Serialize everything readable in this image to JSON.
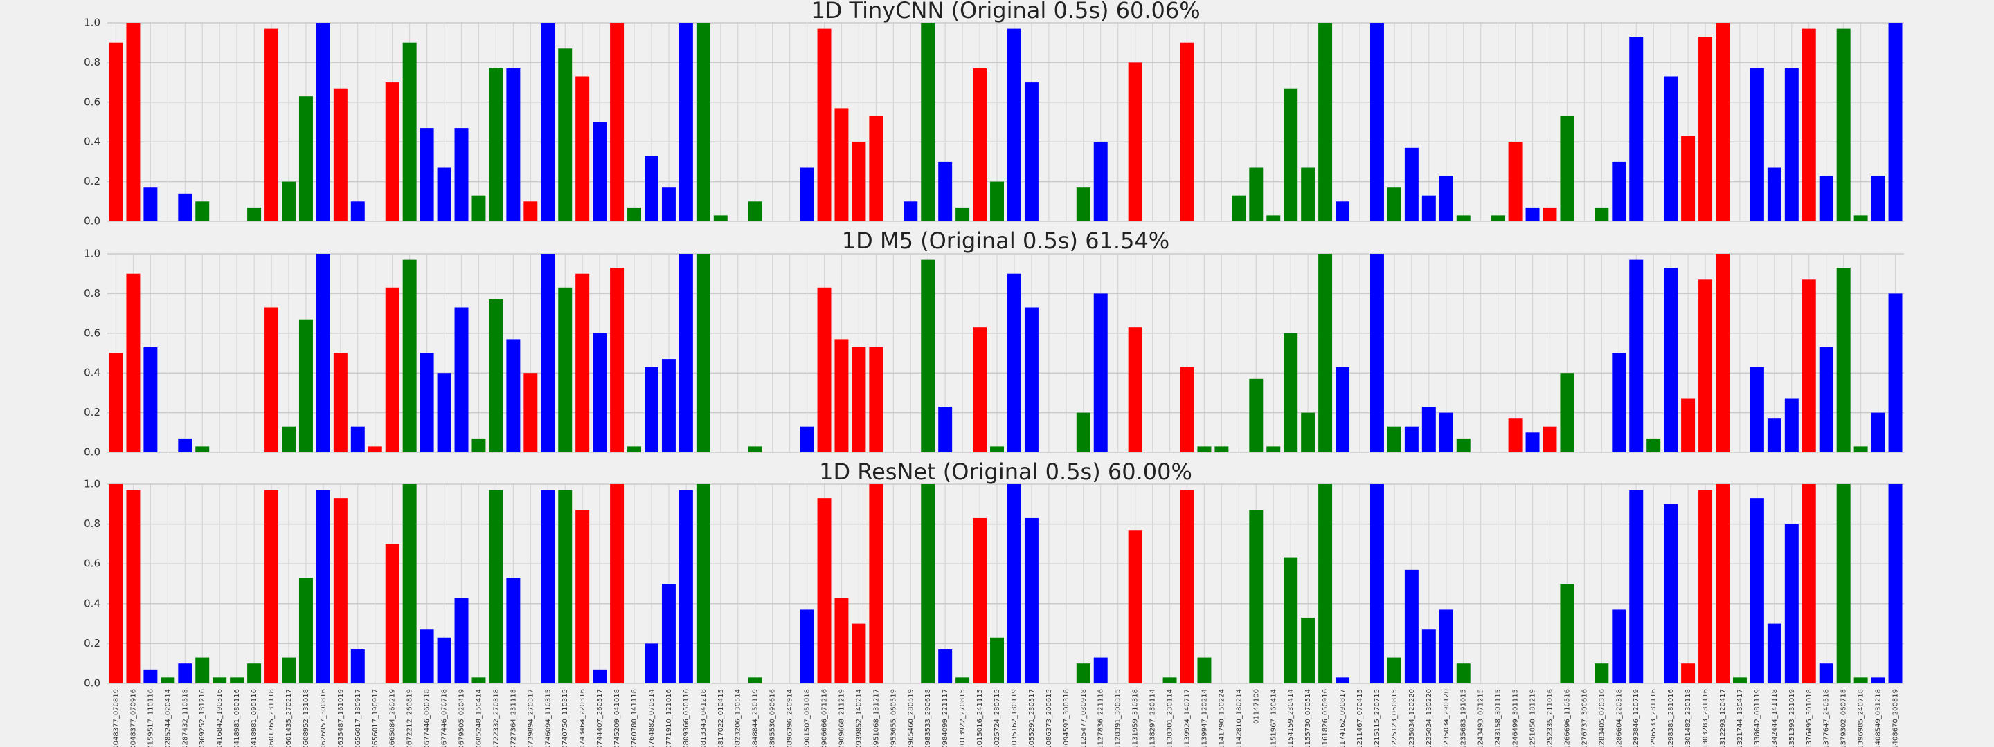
{
  "chart_data": [
    {
      "type": "bar",
      "title": "1D TinyCNN (Original 0.5s) 60.06%",
      "ylim": [
        0,
        1
      ],
      "yticks": [
        {
          "value": 0,
          "label": "0.0"
        },
        0.2,
        0.4,
        0.6,
        0.8,
        {
          "value": 1,
          "label": "1.0"
        }
      ],
      "grid": true,
      "colors": [
        "red",
        "red",
        "blue",
        "green",
        "blue",
        "green",
        "green",
        "green",
        "green",
        "red",
        "green",
        "green",
        "blue",
        "red",
        "blue",
        "red",
        "red",
        "green",
        "blue",
        "blue",
        "blue",
        "green",
        "green",
        "blue",
        "red",
        "blue",
        "green",
        "red",
        "blue",
        "red",
        "green",
        "blue",
        "blue",
        "blue",
        "green",
        "green",
        "green",
        "green",
        "green",
        "green",
        "blue",
        "red",
        "red",
        "red",
        "red",
        "green",
        "blue",
        "green",
        "blue",
        "green",
        "red",
        "green",
        "blue",
        "blue",
        "blue",
        "green",
        "green",
        "blue",
        "red",
        "red",
        "red",
        "green",
        "red",
        "green",
        "green",
        "green",
        "green",
        "green",
        "green",
        "green",
        "green",
        "blue",
        "blue",
        "blue",
        "green",
        "blue",
        "blue",
        "blue",
        "green",
        "green",
        "green",
        "red",
        "blue",
        "red",
        "green",
        "green",
        "green",
        "blue",
        "blue",
        "green",
        "blue",
        "red",
        "red",
        "red",
        "green",
        "blue",
        "blue",
        "blue",
        "red",
        "blue",
        "green",
        "green",
        "blue",
        "blue"
      ],
      "values": [
        0.9,
        1,
        0.17,
        0,
        0.14,
        0.1,
        0,
        0,
        0.07,
        0.97,
        0.2,
        0.63,
        1,
        0.67,
        0.1,
        0,
        0.7,
        0.9,
        0.47,
        0.27,
        0.47,
        0.13,
        0.77,
        0.77,
        0.1,
        1,
        0.87,
        0.73,
        0.5,
        1,
        0.07,
        0.33,
        0.17,
        1,
        1,
        0.03,
        0,
        0.1,
        0,
        0,
        0.27,
        0.97,
        0.57,
        0.4,
        0.53,
        0,
        0.1,
        1,
        0.3,
        0.07,
        0.77,
        0.2,
        0.97,
        0.7,
        0,
        0,
        0.17,
        0.4,
        0,
        0.8,
        0,
        0,
        0.9,
        0,
        0,
        0.13,
        0.27,
        0.03,
        0.67,
        0.27,
        1,
        0.1,
        0,
        1,
        0.17,
        0.37,
        0.13,
        0.23,
        0.03,
        0,
        0.03,
        0.4,
        0.07,
        0.07,
        0.53,
        0,
        0.07,
        0.3,
        0.93,
        0,
        0.73,
        0.43,
        0.93,
        1,
        0,
        0.77,
        0.27,
        0.77,
        0.97,
        0.23,
        0.97,
        0.03,
        0.23,
        1
      ]
    },
    {
      "type": "bar",
      "title": "1D M5 (Original 0.5s) 61.54%",
      "ylim": [
        0,
        1
      ],
      "yticks": [
        {
          "value": 0,
          "label": "0.0"
        },
        0.2,
        0.4,
        0.6,
        0.8,
        {
          "value": 1,
          "label": "1.0"
        }
      ],
      "grid": true,
      "colors": [
        "red",
        "red",
        "blue",
        "green",
        "blue",
        "green",
        "green",
        "green",
        "green",
        "red",
        "green",
        "green",
        "blue",
        "red",
        "blue",
        "red",
        "red",
        "green",
        "blue",
        "blue",
        "blue",
        "green",
        "green",
        "blue",
        "red",
        "blue",
        "green",
        "red",
        "blue",
        "red",
        "green",
        "blue",
        "blue",
        "blue",
        "green",
        "green",
        "green",
        "green",
        "green",
        "green",
        "blue",
        "red",
        "red",
        "red",
        "red",
        "green",
        "blue",
        "green",
        "blue",
        "green",
        "red",
        "green",
        "blue",
        "blue",
        "blue",
        "green",
        "green",
        "blue",
        "red",
        "red",
        "red",
        "green",
        "red",
        "green",
        "green",
        "green",
        "green",
        "green",
        "green",
        "green",
        "green",
        "blue",
        "blue",
        "blue",
        "green",
        "blue",
        "blue",
        "blue",
        "green",
        "green",
        "green",
        "red",
        "blue",
        "red",
        "green",
        "green",
        "green",
        "blue",
        "blue",
        "green",
        "blue",
        "red",
        "red",
        "red",
        "green",
        "blue",
        "blue",
        "blue",
        "red",
        "blue",
        "green",
        "green",
        "blue",
        "blue"
      ],
      "values": [
        0.5,
        0.9,
        0.53,
        0,
        0.07,
        0.03,
        0,
        0,
        0,
        0.73,
        0.13,
        0.67,
        1,
        0.5,
        0.13,
        0.03,
        0.83,
        0.97,
        0.5,
        0.4,
        0.73,
        0.07,
        0.77,
        0.57,
        0.4,
        1,
        0.83,
        0.9,
        0.6,
        0.93,
        0.03,
        0.43,
        0.47,
        1,
        1,
        0,
        0,
        0.03,
        0,
        0,
        0.13,
        0.83,
        0.57,
        0.53,
        0.53,
        0,
        0,
        0.97,
        0.23,
        0,
        0.63,
        0.03,
        0.9,
        0.73,
        0,
        0,
        0.2,
        0.8,
        0,
        0.63,
        0,
        0,
        0.43,
        0.03,
        0.03,
        0,
        0.37,
        0.03,
        0.6,
        0.2,
        1,
        0.43,
        0,
        1,
        0.13,
        0.13,
        0.23,
        0.2,
        0.07,
        0,
        0,
        0.17,
        0.1,
        0.13,
        0.4,
        0,
        0,
        0.5,
        0.97,
        0.07,
        0.93,
        0.27,
        0.87,
        1,
        0,
        0.43,
        0.17,
        0.27,
        0.87,
        0.53,
        0.93,
        0.03,
        0.2,
        0.8
      ]
    },
    {
      "type": "bar",
      "title": "1D ResNet (Original 0.5s) 60.00%",
      "ylim": [
        0,
        1
      ],
      "yticks": [
        {
          "value": 0,
          "label": "0.0"
        },
        0.2,
        0.4,
        0.6,
        0.8,
        {
          "value": 1,
          "label": "1.0"
        }
      ],
      "grid": true,
      "categories": [
        "00048377_070819",
        "00048377_070916",
        "00159517_110116",
        "00285244_020414",
        "00287432_110518",
        "00369252_131216",
        "00416842_190516",
        "00418981_080116",
        "00418981_090116",
        "00601765_231118",
        "00601435_270217",
        "00608952_131018",
        "00626957_300816",
        "00635487_161019",
        "00656017_180917",
        "00656017_190917",
        "00665084_260219",
        "00672212_260819",
        "00677446_060718",
        "00677446_070718",
        "00679505_020419",
        "00685248_150414",
        "00722332_270318",
        "00727364_231118",
        "00739894_270317",
        "00746094_110315",
        "00740750_110315",
        "00743464_220316",
        "00744407_260517",
        "00745209_041018",
        "00760780_141118",
        "00764882_070514",
        "00771910_121016",
        "00809366_050116",
        "00813343_041218",
        "00817022_010415",
        "00823206_130514",
        "00848844_250119",
        "00895530_090616",
        "00896396_240914",
        "00901507_051018",
        "00906666_071216",
        "00909668_211219",
        "00939852_140214",
        "00951068_131217",
        "00953655_060519",
        "00965460_280519",
        "00983533_290618",
        "00984099_221117",
        "01013922_270815",
        "01015016_241115",
        "01025724_280715",
        "01035162_180119",
        "01055291_230517",
        "01086373_200615",
        "01094597_300318",
        "01125477_030918",
        "01127836_221116",
        "01128391_300315",
        "01131959_310318",
        "01138297_230114",
        "01138301_230114",
        "01139924_140717",
        "01139947_120214",
        "01141790_150224",
        "01142810_180214",
        "01147100",
        "01151967_160414",
        "01154159_230414",
        "01155730_070514",
        "01161826_050916",
        "01174162_090817",
        "01211467_070415",
        "01215115_270715",
        "01225123_050815",
        "01235034_120220",
        "01235034_130220",
        "01235034_290120",
        "01235683_191015",
        "01243493_071215",
        "01243158_301115",
        "01246499_301115",
        "01251050_181219",
        "01252335_211016",
        "01266696_110516",
        "01276737_300616",
        "01283405_070316",
        "01286604_220318",
        "01293846_120719",
        "01296533_281116",
        "01298381_281016",
        "01301482_230118",
        "01303283_281116",
        "01312293_120417",
        "01321744_130417",
        "01338642_081119",
        "01342444_141118",
        "01351393_231019",
        "01376495_301018",
        "01377647_240518",
        "01379302_060718",
        "01396985_240718",
        "01408549_031218",
        "01408670_200819"
      ],
      "colors": [
        "red",
        "red",
        "blue",
        "green",
        "blue",
        "green",
        "green",
        "green",
        "green",
        "red",
        "green",
        "green",
        "blue",
        "red",
        "blue",
        "red",
        "red",
        "green",
        "blue",
        "blue",
        "blue",
        "green",
        "green",
        "blue",
        "red",
        "blue",
        "green",
        "red",
        "blue",
        "red",
        "green",
        "blue",
        "blue",
        "blue",
        "green",
        "green",
        "green",
        "green",
        "green",
        "green",
        "blue",
        "red",
        "red",
        "red",
        "red",
        "green",
        "blue",
        "green",
        "blue",
        "green",
        "red",
        "green",
        "blue",
        "blue",
        "blue",
        "green",
        "green",
        "blue",
        "red",
        "red",
        "red",
        "green",
        "red",
        "green",
        "green",
        "green",
        "green",
        "green",
        "green",
        "green",
        "green",
        "blue",
        "blue",
        "blue",
        "green",
        "blue",
        "blue",
        "blue",
        "green",
        "green",
        "green",
        "red",
        "blue",
        "red",
        "green",
        "green",
        "green",
        "blue",
        "blue",
        "green",
        "blue",
        "red",
        "red",
        "red",
        "green",
        "blue",
        "blue",
        "blue",
        "red",
        "blue",
        "green",
        "green",
        "blue",
        "blue"
      ],
      "values": [
        1,
        0.97,
        0.07,
        0.03,
        0.1,
        0.13,
        0.03,
        0.03,
        0.1,
        0.97,
        0.13,
        0.53,
        0.97,
        0.93,
        0.17,
        0,
        0.7,
        1,
        0.27,
        0.23,
        0.43,
        0.03,
        0.97,
        0.53,
        0,
        0.97,
        0.97,
        0.87,
        0.07,
        1,
        0,
        0.2,
        0.5,
        0.97,
        1,
        0,
        0,
        0.03,
        0,
        0,
        0.37,
        0.93,
        0.43,
        0.3,
        1,
        0,
        0,
        1,
        0.17,
        0.03,
        0.83,
        0.23,
        1,
        0.83,
        0,
        0,
        0.1,
        0.13,
        0,
        0.77,
        0,
        0.03,
        0.97,
        0.13,
        0,
        0,
        0.87,
        0,
        0.63,
        0.33,
        1,
        0.03,
        0,
        1,
        0.13,
        0.57,
        0.27,
        0.37,
        0.1,
        0,
        0,
        0,
        0,
        0,
        0.5,
        0,
        0.1,
        0.37,
        0.97,
        0,
        0.9,
        0.1,
        0.97,
        1,
        0.03,
        0.93,
        0.3,
        0.8,
        1,
        0.1,
        1,
        0.03,
        0.03,
        1
      ]
    }
  ]
}
